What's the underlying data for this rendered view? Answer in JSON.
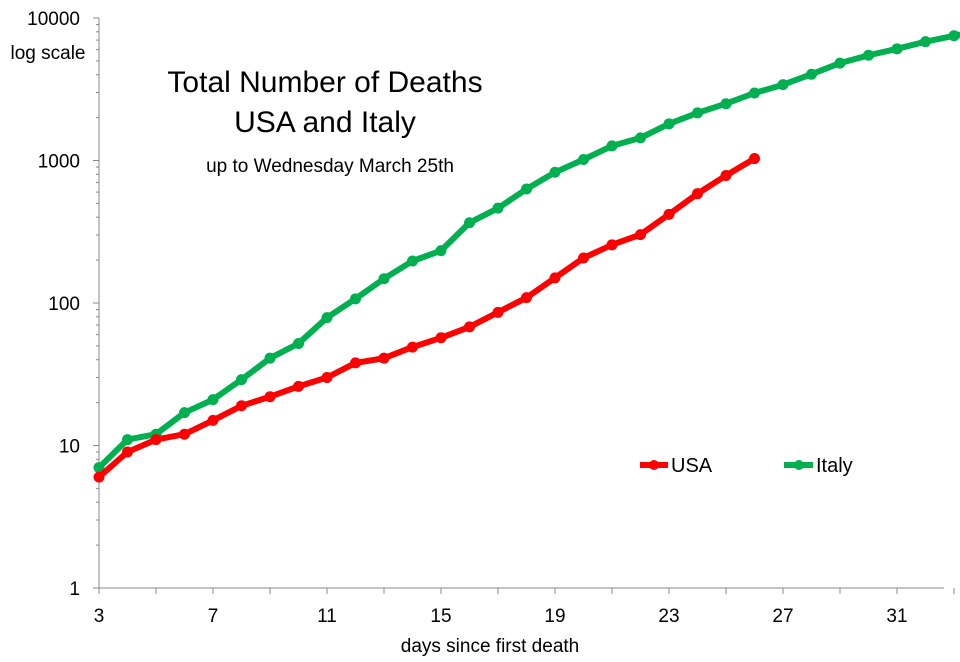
{
  "chart_data": {
    "type": "line",
    "title_lines": [
      "Total Number of Deaths",
      "USA and Italy"
    ],
    "subtitle": "up to Wednesday March 25th",
    "xlabel": "days since first death",
    "ylabel": "log scale",
    "yscale": "log",
    "xlim": [
      3,
      34
    ],
    "ylim": [
      1,
      10000
    ],
    "x_ticks": [
      3,
      7,
      11,
      15,
      19,
      23,
      27,
      31
    ],
    "y_ticks": [
      1,
      10,
      100,
      1000,
      10000
    ],
    "grid": false,
    "legend_position": "center-right",
    "series": [
      {
        "name": "USA",
        "color": "#ff0000",
        "x": [
          3,
          4,
          5,
          6,
          7,
          8,
          9,
          10,
          11,
          12,
          13,
          14,
          15,
          16,
          17,
          18,
          19,
          20,
          21,
          22,
          23,
          24,
          25,
          26
        ],
        "values": [
          6,
          9,
          11,
          12,
          15,
          19,
          22,
          26,
          30,
          38,
          41,
          49,
          57,
          68,
          86,
          109,
          150,
          207,
          256,
          302,
          419,
          585,
          785,
          1032
        ]
      },
      {
        "name": "Italy",
        "color": "#00b050",
        "x": [
          3,
          4,
          5,
          6,
          7,
          8,
          9,
          10,
          11,
          12,
          13,
          14,
          15,
          16,
          17,
          18,
          19,
          20,
          21,
          22,
          23,
          24,
          25,
          26,
          27,
          28,
          29,
          30,
          31,
          32,
          33,
          34
        ],
        "values": [
          7,
          11,
          12,
          17,
          21,
          29,
          41,
          52,
          79,
          107,
          148,
          197,
          233,
          366,
          463,
          631,
          827,
          1016,
          1266,
          1441,
          1809,
          2158,
          2503,
          2978,
          3405,
          4032,
          4825,
          5476,
          6077,
          6820,
          7503,
          8165
        ]
      }
    ]
  }
}
